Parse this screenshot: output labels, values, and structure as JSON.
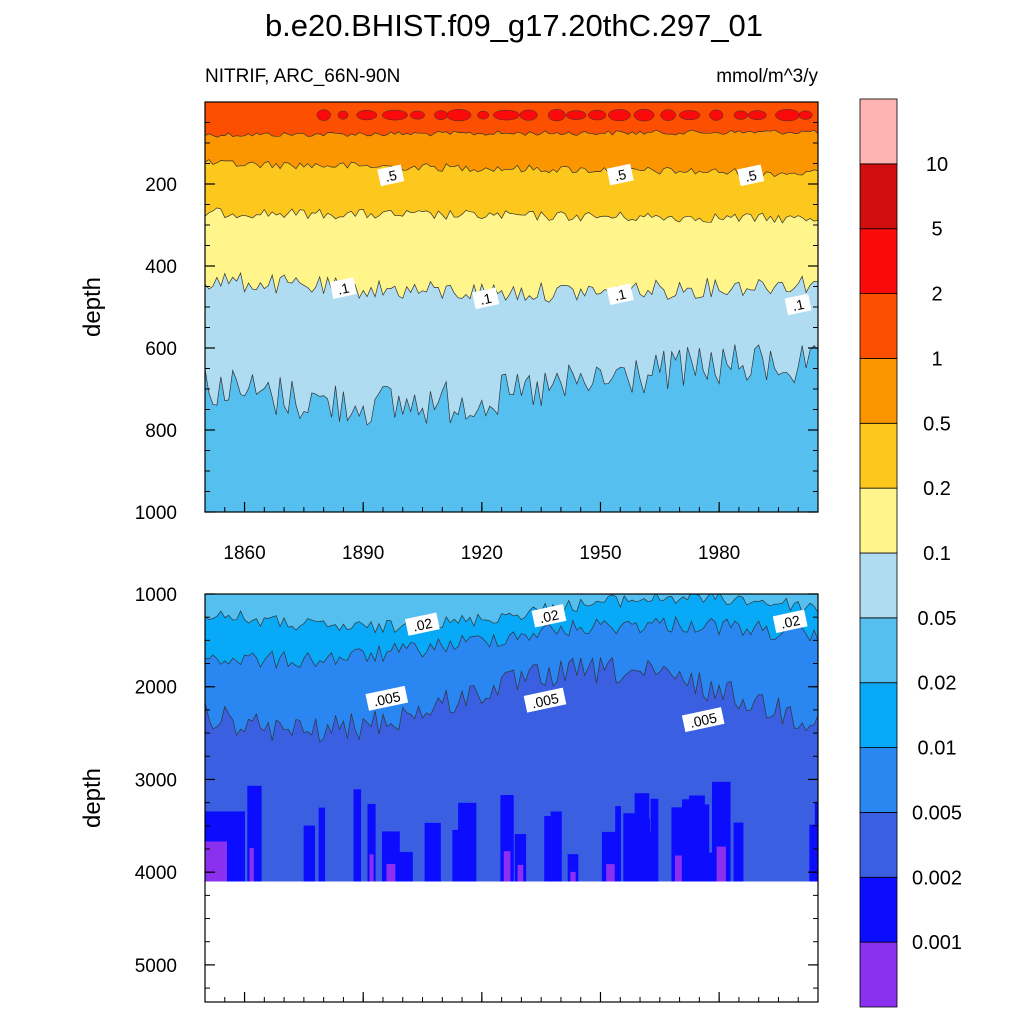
{
  "title": "b.e20.BHIST.f09_g17.20thC.297_01",
  "left_subtitle": "NITRIF, ARC_66N-90N",
  "right_subtitle": "mmol/m^3/y",
  "colors": {
    "bands": [
      "#8c30f0",
      "#0c0cff",
      "#3a5fe0",
      "#2a86f0",
      "#08aaf8",
      "#55c0f0",
      "#b0dcf2",
      "#fff58a",
      "#fcc81e",
      "#fc9600",
      "#fc5000",
      "#fa0a0a",
      "#d00e0e",
      "#ffb4b4"
    ],
    "label_bg": "#ffffff"
  },
  "chart_data": [
    {
      "type": "contour",
      "panel": "upper",
      "ylabel": "depth",
      "ylim": [
        1000,
        0
      ],
      "yticks": [
        200,
        400,
        600,
        800,
        1000
      ],
      "xlim": [
        1850,
        2005
      ],
      "xticks": [
        1860,
        1890,
        1920,
        1950,
        1980
      ],
      "contour_labels": [
        {
          "text": ".5",
          "x": 1897,
          "y": 180
        },
        {
          "text": ".5",
          "x": 1955,
          "y": 178
        },
        {
          "text": ".5",
          "x": 1988,
          "y": 180
        },
        {
          "text": ".1",
          "x": 1885,
          "y": 455
        },
        {
          "text": ".1",
          "x": 1921,
          "y": 480
        },
        {
          "text": ".1",
          "x": 1955,
          "y": 470
        },
        {
          "text": ".1",
          "x": 2000,
          "y": 495
        }
      ]
    },
    {
      "type": "contour",
      "panel": "lower",
      "ylabel": "depth",
      "ylim": [
        5400,
        1000
      ],
      "yticks": [
        1000,
        2000,
        3000,
        4000,
        5000
      ],
      "xlim": [
        1850,
        2005
      ],
      "seafloor_depth": 4100,
      "contour_labels": [
        {
          "text": ".02",
          "x": 1905,
          "y": 1330
        },
        {
          "text": ".02",
          "x": 1937,
          "y": 1240
        },
        {
          "text": ".02",
          "x": 1998,
          "y": 1300
        },
        {
          "text": ".005",
          "x": 1896,
          "y": 2130
        },
        {
          "text": ".005",
          "x": 1936,
          "y": 2150
        },
        {
          "text": ".005",
          "x": 1976,
          "y": 2360
        }
      ]
    }
  ],
  "colorbar": {
    "labels": [
      "0.001",
      "0.002",
      "0.005",
      "0.01",
      "0.02",
      "0.05",
      "0.1",
      "0.2",
      "0.5",
      "1",
      "2",
      "5",
      "10"
    ]
  }
}
